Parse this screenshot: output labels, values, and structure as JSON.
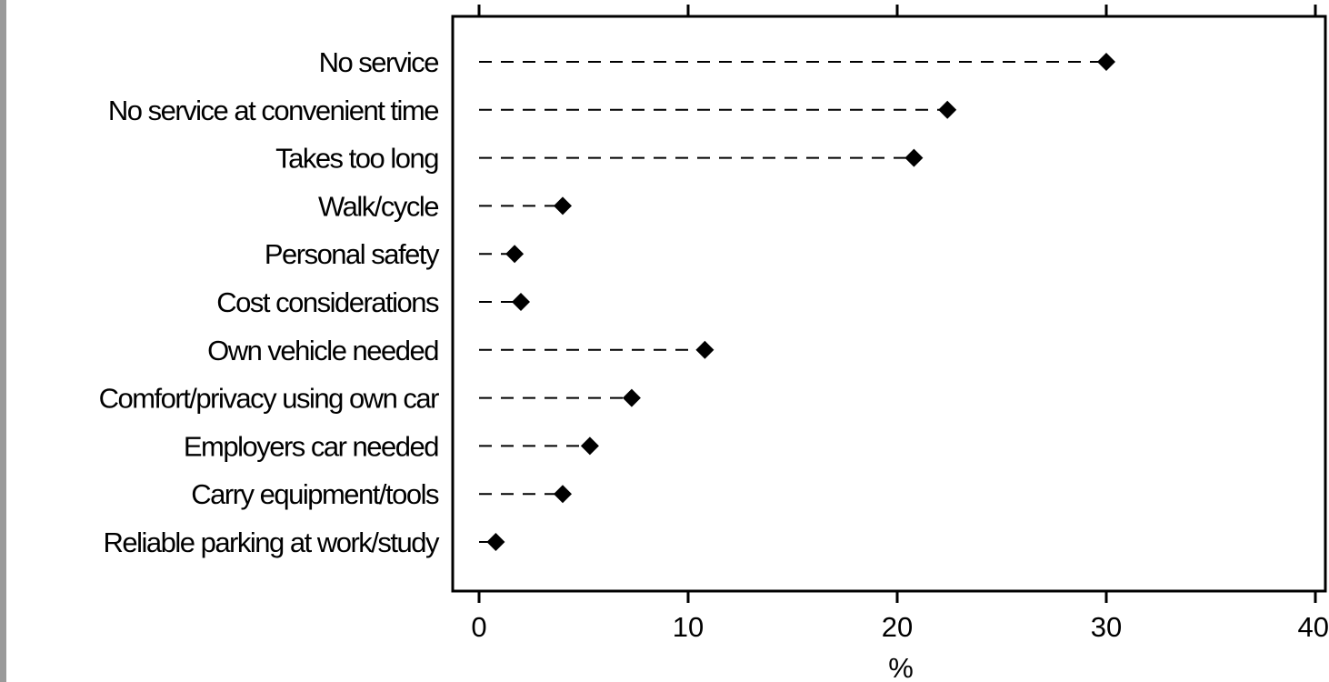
{
  "chart_data": {
    "type": "dot",
    "categories": [
      "No service",
      "No service at convenient time",
      "Takes too long",
      "Walk/cycle",
      "Personal safety",
      "Cost considerations",
      "Own vehicle needed",
      "Comfort/privacy using own car",
      "Employers car needed",
      "Carry equipment/tools",
      "Reliable parking at work/study"
    ],
    "values": [
      30.0,
      22.4,
      20.8,
      4.0,
      1.7,
      2.0,
      10.8,
      7.3,
      5.3,
      4.0,
      0.8
    ],
    "xlabel": "%",
    "xlim": [
      0,
      40
    ],
    "xticks": [
      0,
      10,
      20,
      30,
      40
    ],
    "tick_labels": [
      "0",
      "10",
      "20",
      "30",
      "40"
    ],
    "grid": false,
    "leader_lines": "dashed",
    "colors": {
      "marker": "#000000",
      "axis": "#000000",
      "leader": "#000000",
      "left_edge_bar": "#9a9a9a"
    }
  }
}
